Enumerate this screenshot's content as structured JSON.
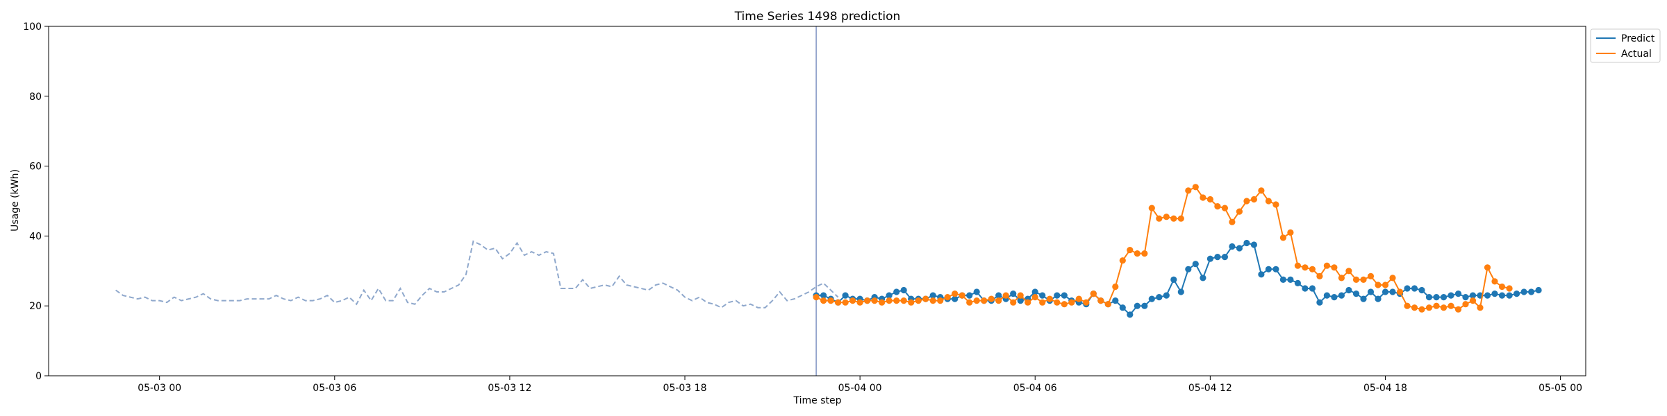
{
  "chart_data": {
    "type": "line",
    "title": "Time Series 1498 prediction",
    "xlabel": "Time step",
    "ylabel": "Usage (kWh)",
    "ylim": [
      0,
      100
    ],
    "yticks": [
      0,
      20,
      40,
      60,
      80,
      100
    ],
    "xlim": [
      "2024-05-02 20:12",
      "2024-05-05 00:52"
    ],
    "xticks": [
      {
        "t": "2024-05-03 00:00",
        "label": "05-03 00"
      },
      {
        "t": "2024-05-03 06:00",
        "label": "05-03 06"
      },
      {
        "t": "2024-05-03 12:00",
        "label": "05-03 12"
      },
      {
        "t": "2024-05-03 18:00",
        "label": "05-03 18"
      },
      {
        "t": "2024-05-04 00:00",
        "label": "05-04 00"
      },
      {
        "t": "2024-05-04 06:00",
        "label": "05-04 06"
      },
      {
        "t": "2024-05-04 12:00",
        "label": "05-04 12"
      },
      {
        "t": "2024-05-04 18:00",
        "label": "05-04 18"
      },
      {
        "t": "2024-05-05 00:00",
        "label": "05-05 00"
      }
    ],
    "interval_minutes": 15,
    "forecast_start": "2024-05-03 22:30",
    "legend_position": "upper-right-outside",
    "history": {
      "start": "2024-05-02 22:30",
      "color": "#8fa8cc",
      "style": "dashed",
      "values": [
        24.5,
        23.0,
        22.5,
        22.0,
        22.5,
        21.5,
        21.5,
        21.0,
        22.5,
        21.5,
        22.0,
        22.5,
        23.5,
        22.0,
        21.5,
        21.5,
        21.5,
        21.5,
        22.0,
        22.0,
        22.0,
        22.0,
        23.0,
        22.0,
        21.5,
        22.5,
        21.5,
        21.5,
        22.0,
        23.0,
        21.0,
        21.5,
        22.5,
        20.5,
        24.5,
        21.5,
        25.0,
        21.5,
        21.5,
        25.0,
        21.0,
        20.5,
        23.0,
        25.0,
        24.0,
        24.0,
        25.0,
        26.0,
        29.0,
        38.5,
        37.5,
        36.0,
        36.5,
        33.5,
        35.0,
        38.0,
        34.5,
        35.5,
        34.5,
        35.5,
        35.0,
        25.0,
        25.0,
        25.0,
        27.5,
        25.0,
        25.5,
        26.0,
        25.5,
        28.5,
        26.0,
        25.5,
        25.0,
        24.5,
        26.0,
        26.5,
        25.5,
        24.5,
        22.5,
        21.5,
        22.5,
        21.0,
        20.5,
        19.5,
        21.0,
        21.5,
        20.0,
        20.5,
        19.5,
        19.5,
        21.5,
        24.0,
        21.5,
        22.0,
        23.0,
        24.0,
        25.5,
        26.5,
        24.5,
        22.5
      ]
    },
    "series": [
      {
        "name": "Predict",
        "color": "#1f77b4",
        "start": "2024-05-03 22:30",
        "values": [
          23.0,
          23.0,
          22.0,
          21.0,
          23.0,
          22.0,
          22.0,
          21.5,
          22.5,
          22.0,
          23.0,
          24.0,
          24.5,
          22.0,
          22.0,
          22.0,
          23.0,
          22.5,
          22.0,
          22.0,
          23.0,
          23.0,
          24.0,
          21.5,
          21.5,
          23.0,
          22.0,
          23.5,
          21.5,
          22.0,
          24.0,
          23.0,
          21.5,
          23.0,
          23.0,
          21.5,
          21.0,
          20.5,
          23.5,
          21.5,
          20.5,
          21.5,
          19.5,
          17.5,
          20.0,
          20.0,
          22.0,
          22.5,
          23.0,
          27.5,
          24.0,
          30.5,
          32.0,
          28.0,
          33.5,
          34.0,
          34.0,
          37.0,
          36.5,
          38.0,
          37.5,
          29.0,
          30.5,
          30.5,
          27.5,
          27.5,
          26.5,
          25.0,
          25.0,
          21.0,
          23.0,
          22.5,
          23.0,
          24.5,
          23.5,
          22.0,
          24.0,
          22.0,
          24.0,
          24.0,
          23.5,
          25.0,
          25.0,
          24.5,
          22.5,
          22.5,
          22.5,
          23.0,
          23.5,
          22.5,
          23.0,
          23.0,
          23.0,
          23.5,
          23.0,
          23.0,
          23.5,
          24.0,
          24.0,
          24.5
        ]
      },
      {
        "name": "Actual",
        "color": "#ff7f0e",
        "start": "2024-05-03 22:30",
        "values": [
          22.5,
          21.5,
          21.5,
          21.0,
          21.0,
          21.5,
          21.0,
          21.5,
          21.5,
          21.0,
          21.5,
          21.5,
          21.5,
          21.0,
          21.5,
          22.0,
          21.5,
          21.5,
          22.5,
          23.5,
          23.0,
          21.0,
          21.5,
          21.5,
          22.0,
          21.5,
          23.0,
          21.0,
          23.0,
          21.0,
          22.5,
          21.0,
          22.0,
          21.0,
          20.5,
          21.0,
          22.0,
          21.0,
          23.5,
          21.5,
          20.5,
          25.5,
          33.0,
          36.0,
          35.0,
          35.0,
          48.0,
          45.0,
          45.5,
          45.0,
          45.0,
          53.0,
          54.0,
          51.0,
          50.5,
          48.5,
          48.0,
          44.0,
          47.0,
          50.0,
          50.5,
          53.0,
          50.0,
          49.0,
          39.5,
          41.0,
          31.5,
          31.0,
          30.5,
          28.5,
          31.5,
          31.0,
          28.0,
          30.0,
          27.5,
          27.5,
          28.5,
          26.0,
          26.0,
          28.0,
          24.0,
          20.0,
          19.5,
          19.0,
          19.5,
          20.0,
          19.5,
          20.0,
          19.0,
          20.5,
          21.5,
          19.5,
          31.0,
          27.0,
          25.5,
          25.0
        ]
      }
    ]
  }
}
